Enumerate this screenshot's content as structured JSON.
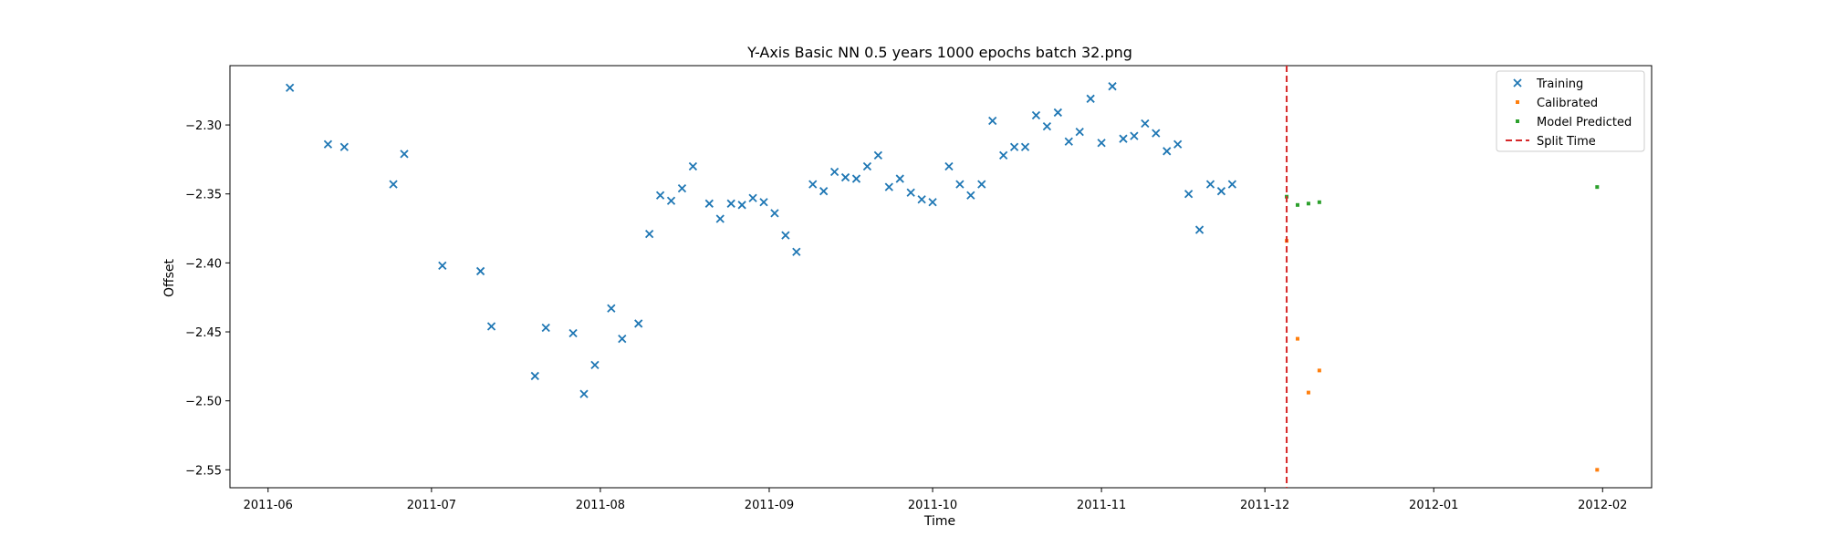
{
  "chart_data": {
    "type": "scatter",
    "title": "Y-Axis Basic NN 0.5 years 1000 epochs batch 32.png",
    "xlabel": "Time",
    "ylabel": "Offset",
    "x_axis_type": "date",
    "xlim": [
      "2011-05-25",
      "2012-02-10"
    ],
    "ylim": [
      -2.563,
      -2.257
    ],
    "x_ticks": [
      "2011-06",
      "2011-07",
      "2011-08",
      "2011-09",
      "2011-10",
      "2011-11",
      "2011-12",
      "2012-01",
      "2012-02"
    ],
    "y_ticks": [
      -2.3,
      -2.35,
      -2.4,
      -2.45,
      -2.5,
      -2.55
    ],
    "y_tick_labels": [
      "−2.30",
      "−2.35",
      "−2.40",
      "−2.45",
      "−2.50",
      "−2.55"
    ],
    "grid": false,
    "legend_position": "top-right",
    "series": [
      {
        "name": "Training",
        "marker": "x",
        "color": "#1f77b4",
        "points": [
          [
            "2011-06-05",
            -2.273
          ],
          [
            "2011-06-12",
            -2.314
          ],
          [
            "2011-06-15",
            -2.316
          ],
          [
            "2011-06-24",
            -2.343
          ],
          [
            "2011-06-26",
            -2.321
          ],
          [
            "2011-07-03",
            -2.402
          ],
          [
            "2011-07-10",
            -2.406
          ],
          [
            "2011-07-12",
            -2.446
          ],
          [
            "2011-07-20",
            -2.482
          ],
          [
            "2011-07-22",
            -2.447
          ],
          [
            "2011-07-27",
            -2.451
          ],
          [
            "2011-07-29",
            -2.495
          ],
          [
            "2011-07-31",
            -2.474
          ],
          [
            "2011-08-03",
            -2.433
          ],
          [
            "2011-08-05",
            -2.455
          ],
          [
            "2011-08-08",
            -2.444
          ],
          [
            "2011-08-10",
            -2.379
          ],
          [
            "2011-08-12",
            -2.351
          ],
          [
            "2011-08-14",
            -2.355
          ],
          [
            "2011-08-16",
            -2.346
          ],
          [
            "2011-08-18",
            -2.33
          ],
          [
            "2011-08-21",
            -2.357
          ],
          [
            "2011-08-23",
            -2.368
          ],
          [
            "2011-08-25",
            -2.357
          ],
          [
            "2011-08-27",
            -2.358
          ],
          [
            "2011-08-29",
            -2.353
          ],
          [
            "2011-08-31",
            -2.356
          ],
          [
            "2011-09-02",
            -2.364
          ],
          [
            "2011-09-04",
            -2.38
          ],
          [
            "2011-09-06",
            -2.392
          ],
          [
            "2011-09-09",
            -2.343
          ],
          [
            "2011-09-11",
            -2.348
          ],
          [
            "2011-09-13",
            -2.334
          ],
          [
            "2011-09-15",
            -2.338
          ],
          [
            "2011-09-17",
            -2.339
          ],
          [
            "2011-09-19",
            -2.33
          ],
          [
            "2011-09-21",
            -2.322
          ],
          [
            "2011-09-23",
            -2.345
          ],
          [
            "2011-09-25",
            -2.339
          ],
          [
            "2011-09-27",
            -2.349
          ],
          [
            "2011-09-29",
            -2.354
          ],
          [
            "2011-10-01",
            -2.356
          ],
          [
            "2011-10-04",
            -2.33
          ],
          [
            "2011-10-06",
            -2.343
          ],
          [
            "2011-10-08",
            -2.351
          ],
          [
            "2011-10-10",
            -2.343
          ],
          [
            "2011-10-12",
            -2.297
          ],
          [
            "2011-10-14",
            -2.322
          ],
          [
            "2011-10-16",
            -2.316
          ],
          [
            "2011-10-18",
            -2.316
          ],
          [
            "2011-10-20",
            -2.293
          ],
          [
            "2011-10-22",
            -2.301
          ],
          [
            "2011-10-24",
            -2.291
          ],
          [
            "2011-10-26",
            -2.312
          ],
          [
            "2011-10-28",
            -2.305
          ],
          [
            "2011-10-30",
            -2.281
          ],
          [
            "2011-11-01",
            -2.313
          ],
          [
            "2011-11-03",
            -2.272
          ],
          [
            "2011-11-05",
            -2.31
          ],
          [
            "2011-11-07",
            -2.308
          ],
          [
            "2011-11-09",
            -2.299
          ],
          [
            "2011-11-11",
            -2.306
          ],
          [
            "2011-11-13",
            -2.319
          ],
          [
            "2011-11-15",
            -2.314
          ],
          [
            "2011-11-17",
            -2.35
          ],
          [
            "2011-11-19",
            -2.376
          ],
          [
            "2011-11-21",
            -2.343
          ],
          [
            "2011-11-23",
            -2.348
          ],
          [
            "2011-11-25",
            -2.343
          ]
        ]
      },
      {
        "name": "Calibrated",
        "marker": "dot",
        "color": "#ff7f0e",
        "points": [
          [
            "2011-12-05",
            -2.384
          ],
          [
            "2011-12-07",
            -2.455
          ],
          [
            "2011-12-09",
            -2.494
          ],
          [
            "2011-12-11",
            -2.478
          ],
          [
            "2012-01-31",
            -2.55
          ]
        ]
      },
      {
        "name": "Model Predicted",
        "marker": "dot",
        "color": "#2ca02c",
        "points": [
          [
            "2011-12-05",
            -2.352
          ],
          [
            "2011-12-07",
            -2.358
          ],
          [
            "2011-12-09",
            -2.357
          ],
          [
            "2011-12-11",
            -2.356
          ],
          [
            "2012-01-31",
            -2.345
          ]
        ]
      },
      {
        "name": "Split Time",
        "type": "vline",
        "color": "#d62728",
        "line_style": "dashed",
        "x": "2011-12-05"
      }
    ]
  }
}
